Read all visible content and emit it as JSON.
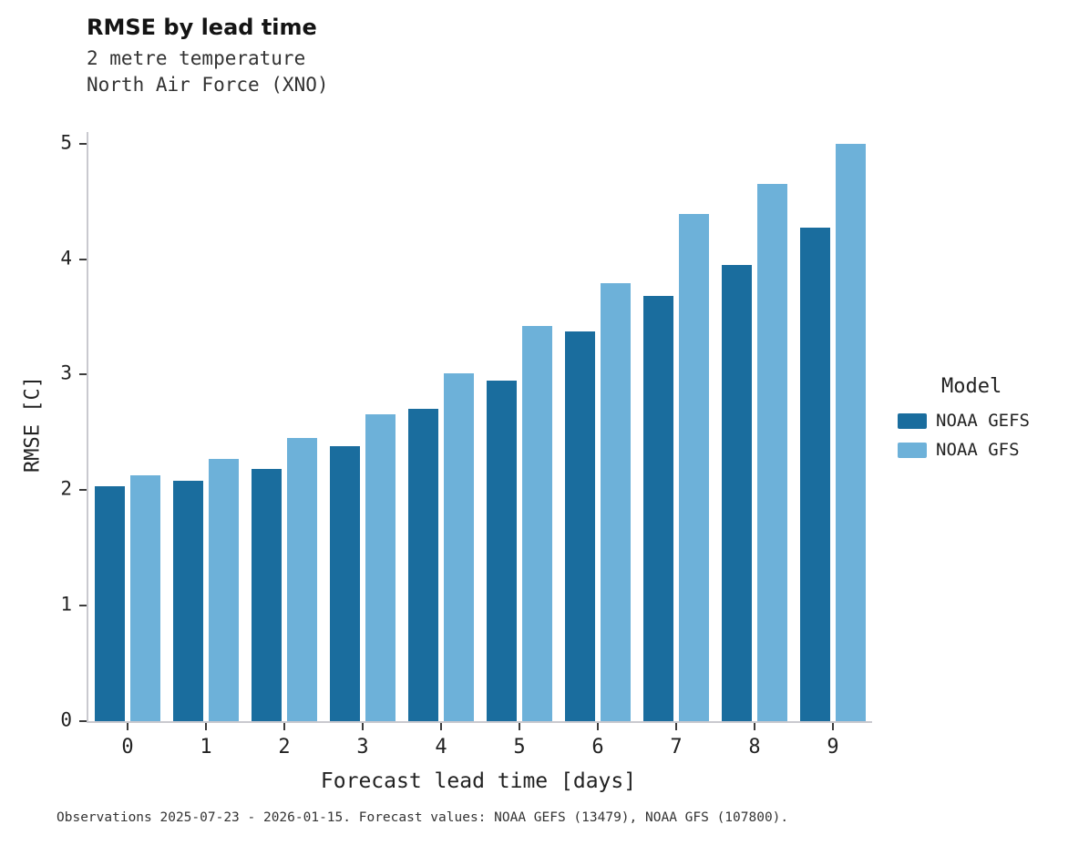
{
  "chart_data": {
    "type": "bar",
    "title": "RMSE by lead time",
    "subtitle": "2 metre temperature",
    "subtitle2": "North Air Force (XNO)",
    "xlabel": "Forecast lead time [days]",
    "ylabel": "RMSE [C]",
    "legend_title": "Model",
    "legend_position": "right",
    "grid": false,
    "categories": [
      0,
      1,
      2,
      3,
      4,
      5,
      6,
      7,
      8,
      9
    ],
    "series": [
      {
        "name": "NOAA GEFS",
        "color": "#1a6d9e",
        "values": [
          2.03,
          2.08,
          2.18,
          2.38,
          2.7,
          2.95,
          3.37,
          3.68,
          3.95,
          4.27
        ]
      },
      {
        "name": "NOAA GFS",
        "color": "#6db1d9",
        "values": [
          2.13,
          2.27,
          2.45,
          2.66,
          3.01,
          3.42,
          3.79,
          4.39,
          4.65,
          5.0
        ]
      }
    ],
    "ylim": [
      0,
      5.1
    ],
    "yticks": [
      0,
      1,
      2,
      3,
      4,
      5
    ],
    "caption": "Observations 2025-07-23 - 2026-01-15. Forecast values: NOAA GEFS (13479), NOAA GFS (107800)."
  }
}
